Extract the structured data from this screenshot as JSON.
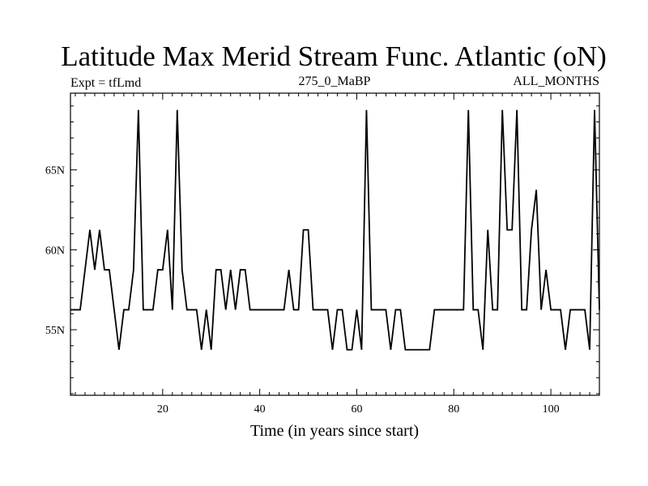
{
  "chart_data": {
    "type": "line",
    "title": "Latitude Max Merid Stream Func. Atlantic (oN)",
    "subtitle_left": "Expt = tfLmd",
    "subtitle_center": "275_0_MaBP",
    "subtitle_right": "ALL_MONTHS",
    "xlabel": "Time (in years since start)",
    "ylabel": "",
    "xlim": [
      1,
      110
    ],
    "ylim": [
      50.9,
      69.8
    ],
    "x_ticks": [
      20,
      40,
      60,
      80,
      100
    ],
    "x_tick_labels": [
      "20",
      "40",
      "60",
      "80",
      "100"
    ],
    "y_ticks": [
      55,
      60,
      65
    ],
    "y_tick_labels": [
      "55N",
      "60N",
      "65N"
    ],
    "grid": false,
    "series": [
      {
        "name": "Latitude max",
        "color": "#000000",
        "x": [
          1,
          2,
          3,
          4,
          5,
          6,
          7,
          8,
          9,
          10,
          11,
          12,
          13,
          14,
          15,
          16,
          17,
          18,
          19,
          20,
          21,
          22,
          23,
          24,
          25,
          26,
          27,
          28,
          29,
          30,
          31,
          32,
          33,
          34,
          35,
          36,
          37,
          38,
          39,
          40,
          41,
          42,
          43,
          44,
          45,
          46,
          47,
          48,
          49,
          50,
          51,
          52,
          53,
          54,
          55,
          56,
          57,
          58,
          59,
          60,
          61,
          62,
          63,
          64,
          65,
          66,
          67,
          68,
          69,
          70,
          71,
          72,
          73,
          74,
          75,
          76,
          77,
          78,
          79,
          80,
          81,
          82,
          83,
          84,
          85,
          86,
          87,
          88,
          89,
          90,
          91,
          92,
          93,
          94,
          95,
          96,
          97,
          98,
          99,
          100,
          101,
          102,
          103,
          104,
          105,
          106,
          107,
          108,
          109,
          110
        ],
        "y": [
          56.25,
          56.25,
          56.25,
          58.75,
          61.25,
          58.75,
          61.25,
          58.75,
          58.75,
          56.25,
          53.75,
          56.25,
          56.25,
          58.75,
          68.75,
          56.25,
          56.25,
          56.25,
          58.75,
          58.75,
          61.25,
          56.25,
          68.75,
          58.75,
          56.25,
          56.25,
          56.25,
          53.75,
          56.25,
          53.75,
          58.75,
          58.75,
          56.25,
          58.75,
          56.25,
          58.75,
          58.75,
          56.25,
          56.25,
          56.25,
          56.25,
          56.25,
          56.25,
          56.25,
          56.25,
          58.75,
          56.25,
          56.25,
          61.25,
          61.25,
          56.25,
          56.25,
          56.25,
          56.25,
          53.75,
          56.25,
          56.25,
          53.75,
          53.75,
          56.25,
          53.75,
          68.75,
          56.25,
          56.25,
          56.25,
          56.25,
          53.75,
          56.25,
          56.25,
          53.75,
          53.75,
          53.75,
          53.75,
          53.75,
          53.75,
          56.25,
          56.25,
          56.25,
          56.25,
          56.25,
          56.25,
          56.25,
          68.75,
          56.25,
          56.25,
          53.75,
          61.25,
          56.25,
          56.25,
          68.75,
          61.25,
          61.25,
          68.75,
          56.25,
          56.25,
          61.25,
          63.75,
          56.25,
          58.75,
          56.25,
          56.25,
          56.25,
          53.75,
          56.25,
          56.25,
          56.25,
          56.25,
          53.75,
          68.75,
          56.25
        ]
      }
    ]
  }
}
